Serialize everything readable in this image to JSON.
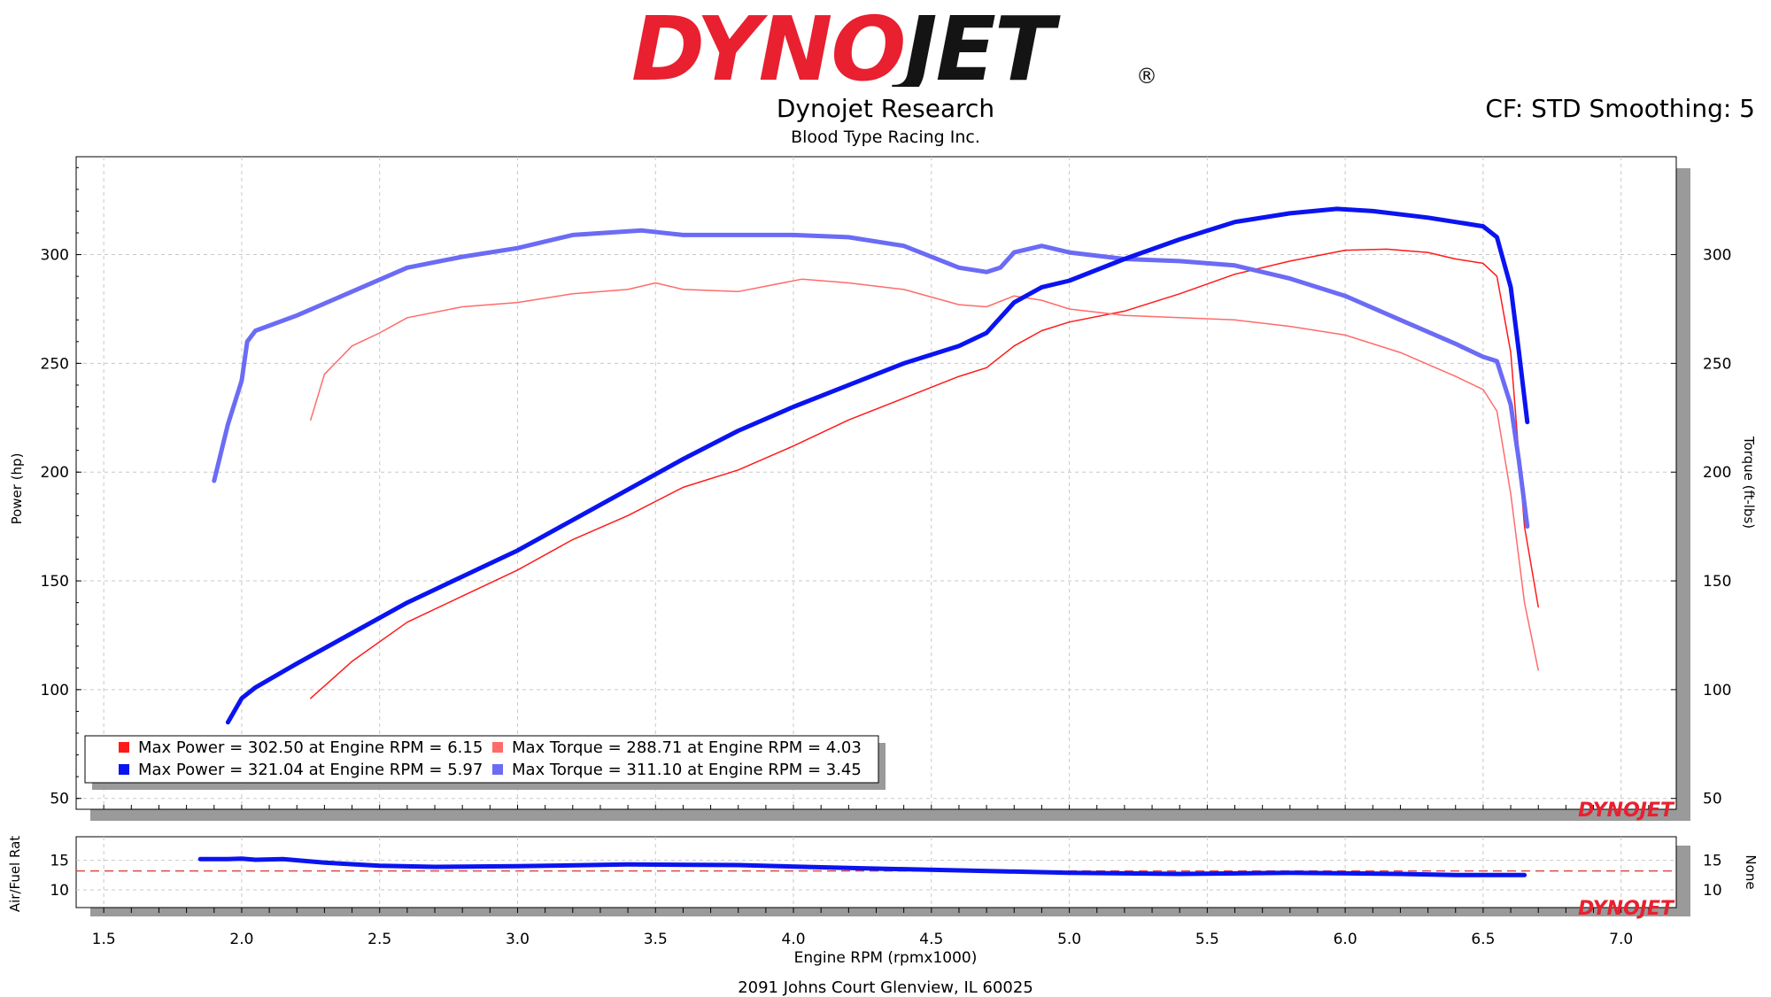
{
  "header": {
    "logo_text": "DYNOJET",
    "logo_mark": "®",
    "title": "Dynojet Research",
    "subtitle": "Blood Type Racing Inc.",
    "settings": "CF: STD Smoothing: 5"
  },
  "footer": {
    "address": "2091 Johns Court Glenview, IL 60025"
  },
  "watermark": "DYNOJET",
  "colors": {
    "logo_red": "#e8202f",
    "red": "#ff1a1a",
    "light_red": "#ff6b6b",
    "blue": "#0a14f0",
    "light_blue": "#6b6bf5",
    "afr_target": "#e04848"
  },
  "chart_data": [
    {
      "type": "line",
      "xlabel": "Engine RPM (rpmx1000)",
      "ylabel": "Power (hp)",
      "y2label": "Torque (ft-lbs)",
      "xlim": [
        1.4,
        7.2
      ],
      "ylim": [
        45,
        345
      ],
      "y2lim": [
        45,
        345
      ],
      "x_ticks": [
        "1.5",
        "2.0",
        "2.5",
        "3.0",
        "3.5",
        "4.0",
        "4.5",
        "5.0",
        "5.5",
        "6.0",
        "6.5",
        "7.0"
      ],
      "y_ticks": [
        "50",
        "100",
        "150",
        "200",
        "250",
        "300"
      ],
      "y2_ticks": [
        "50",
        "100",
        "150",
        "200",
        "250",
        "300"
      ],
      "grid": true,
      "legend_position": "bottom-left",
      "series": [
        {
          "name": "Max Power = 302.50 at Engine RPM = 6.15",
          "role": "power",
          "color": "#ff1a1a",
          "width": 1.5,
          "x": [
            2.25,
            2.4,
            2.6,
            2.8,
            3.0,
            3.2,
            3.4,
            3.6,
            3.8,
            4.0,
            4.2,
            4.4,
            4.6,
            4.7,
            4.8,
            4.9,
            5.0,
            5.2,
            5.4,
            5.6,
            5.8,
            6.0,
            6.15,
            6.3,
            6.4,
            6.5,
            6.55,
            6.6,
            6.65,
            6.7
          ],
          "y": [
            96,
            113,
            131,
            143,
            155,
            169,
            180,
            193,
            201,
            212,
            224,
            234,
            244,
            248,
            258,
            265,
            269,
            274,
            282,
            291,
            297,
            302,
            302.5,
            301,
            298,
            296,
            290,
            255,
            175,
            138
          ]
        },
        {
          "name": "Max Power = 321.04 at Engine RPM = 5.97",
          "role": "power",
          "color": "#0a14f0",
          "width": 5,
          "x": [
            1.95,
            2.0,
            2.05,
            2.2,
            2.4,
            2.6,
            2.8,
            3.0,
            3.2,
            3.4,
            3.6,
            3.8,
            4.0,
            4.2,
            4.4,
            4.6,
            4.7,
            4.8,
            4.9,
            5.0,
            5.2,
            5.4,
            5.6,
            5.8,
            5.97,
            6.1,
            6.3,
            6.5,
            6.55,
            6.6,
            6.63,
            6.66
          ],
          "y": [
            85,
            96,
            101,
            112,
            126,
            140,
            152,
            164,
            178,
            192,
            206,
            219,
            230,
            240,
            250,
            258,
            264,
            278,
            285,
            288,
            298,
            307,
            315,
            319,
            321.04,
            320,
            317,
            313,
            308,
            285,
            255,
            223
          ]
        },
        {
          "name": "Max Torque = 288.71 at Engine RPM = 4.03",
          "role": "torque",
          "color": "#ff6b6b",
          "width": 1.5,
          "x": [
            2.25,
            2.3,
            2.4,
            2.5,
            2.6,
            2.8,
            3.0,
            3.2,
            3.4,
            3.5,
            3.6,
            3.8,
            4.03,
            4.2,
            4.4,
            4.6,
            4.7,
            4.8,
            4.9,
            5.0,
            5.2,
            5.4,
            5.6,
            5.8,
            6.0,
            6.2,
            6.4,
            6.5,
            6.55,
            6.6,
            6.65,
            6.7
          ],
          "y": [
            224,
            245,
            258,
            264,
            271,
            276,
            278,
            282,
            284,
            287,
            284,
            283,
            288.71,
            287,
            284,
            277,
            276,
            281,
            279,
            275,
            272,
            271,
            270,
            267,
            263,
            255,
            244,
            238,
            228,
            190,
            140,
            109
          ]
        },
        {
          "name": "Max Torque = 311.10 at Engine RPM = 3.45",
          "role": "torque",
          "color": "#6b6bf5",
          "width": 5,
          "x": [
            1.9,
            1.95,
            2.0,
            2.02,
            2.05,
            2.2,
            2.4,
            2.6,
            2.8,
            3.0,
            3.2,
            3.45,
            3.6,
            3.8,
            4.0,
            4.2,
            4.4,
            4.6,
            4.7,
            4.75,
            4.8,
            4.9,
            5.0,
            5.2,
            5.4,
            5.6,
            5.8,
            6.0,
            6.2,
            6.4,
            6.5,
            6.55,
            6.6,
            6.63,
            6.66
          ],
          "y": [
            196,
            222,
            242,
            260,
            265,
            272,
            283,
            294,
            299,
            303,
            309,
            311.1,
            309,
            309,
            309,
            308,
            304,
            294,
            292,
            294,
            301,
            304,
            301,
            298,
            297,
            295,
            289,
            281,
            270,
            259,
            253,
            251,
            231,
            205,
            175
          ]
        }
      ]
    },
    {
      "type": "line",
      "xlabel": "Engine RPM (rpmx1000)",
      "ylabel": "Air/Fuel Rat",
      "y2label": "None",
      "xlim": [
        1.4,
        7.2
      ],
      "ylim": [
        7,
        19
      ],
      "y_ticks": [
        "10",
        "15"
      ],
      "y2_ticks": [
        "10",
        "15"
      ],
      "target_afr": 13.2,
      "series": [
        {
          "role": "afr",
          "color": "#0a14f0",
          "width": 5,
          "x": [
            1.85,
            1.95,
            2.0,
            2.05,
            2.15,
            2.3,
            2.5,
            2.7,
            3.0,
            3.4,
            3.8,
            4.2,
            4.6,
            5.0,
            5.4,
            5.8,
            6.2,
            6.4,
            6.65
          ],
          "y": [
            15.2,
            15.2,
            15.3,
            15.1,
            15.2,
            14.6,
            14.1,
            13.9,
            14.0,
            14.3,
            14.2,
            13.7,
            13.3,
            12.9,
            12.7,
            12.9,
            12.7,
            12.5,
            12.5
          ]
        }
      ]
    }
  ],
  "legend": [
    {
      "color": "#ff1a1a",
      "text": "Max Power = 302.50 at Engine RPM = 6.15"
    },
    {
      "color": "#ff6b6b",
      "text": "Max Torque = 288.71 at Engine RPM = 4.03"
    },
    {
      "color": "#0a14f0",
      "text": "Max Power = 321.04 at Engine RPM = 5.97"
    },
    {
      "color": "#6b6bf5",
      "text": "Max Torque = 311.10 at Engine RPM = 3.45"
    }
  ]
}
